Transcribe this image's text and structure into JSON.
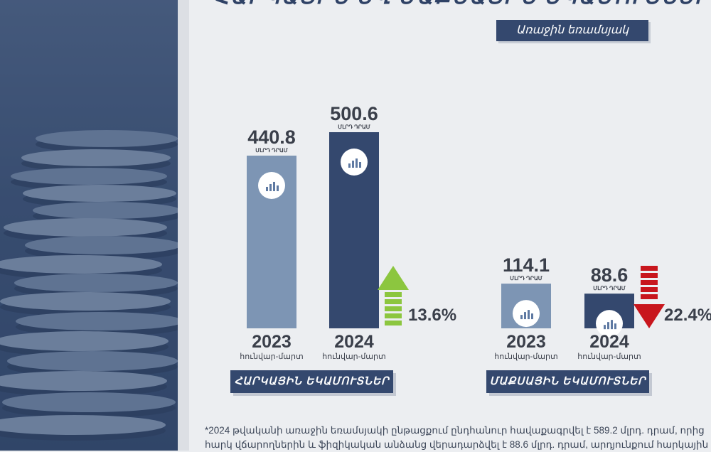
{
  "title": "ՀԱՐԿԱՅԻՆ ԵՎ ՄԱՔՍԱՅԻՆ ԵԿԱՄՈՒՏՆԵՐ",
  "period_badge": "Առաջին եռամսյակ",
  "unit_label": "ՄԼՐԴ ԴՐԱՄ",
  "footnote_lines": [
    "*2024 թվականի առաջին եռամսյակի ընթացքում ընդհանուր հավաքագրվել է 589.2 մլրդ. դրամ, որից",
    "հարկ վճարողներին և ֆիզիկական անձանց վերադարձվել է 88.6 մլրդ. դրամ, արդյունքում հարկային"
  ],
  "colors": {
    "bar_2023": "#7d95b4",
    "bar_2024": "#34486e",
    "arrow_up": "#8cc63f",
    "arrow_down": "#c8161d",
    "label_bg": "#34486e"
  },
  "chart_data": [
    {
      "type": "bar",
      "name": "ՀԱՐԿԱՅԻՆ ԵԿԱՄՈՒՏՆԵՐ",
      "categories": [
        "2023",
        "2024"
      ],
      "sublabels": [
        "հունվար-մարտ",
        "հունվար-մարտ"
      ],
      "values": [
        440.8,
        500.6
      ],
      "unit": "ՄԼՐԴ ԴՐԱՄ",
      "change": {
        "direction": "up",
        "label": "13.6%"
      },
      "category_label": "ՀԱՐԿԱՅԻՆ ԵԿԱՄՈՒՏՆԵՐ"
    },
    {
      "type": "bar",
      "name": "ՄԱՔՍԱՅԻՆ ԵԿԱՄՈՒՏՆԵՐ",
      "categories": [
        "2023",
        "2024"
      ],
      "sublabels": [
        "հունվար-մարտ",
        "հունվար-մարտ"
      ],
      "values": [
        114.1,
        88.6
      ],
      "unit": "ՄԼՐԴ ԴՐԱՄ",
      "change": {
        "direction": "down",
        "label": "22.4%"
      },
      "category_label": "ՄԱՔՍԱՅԻՆ ԵԿԱՄՈՒՏՆԵՐ"
    }
  ]
}
